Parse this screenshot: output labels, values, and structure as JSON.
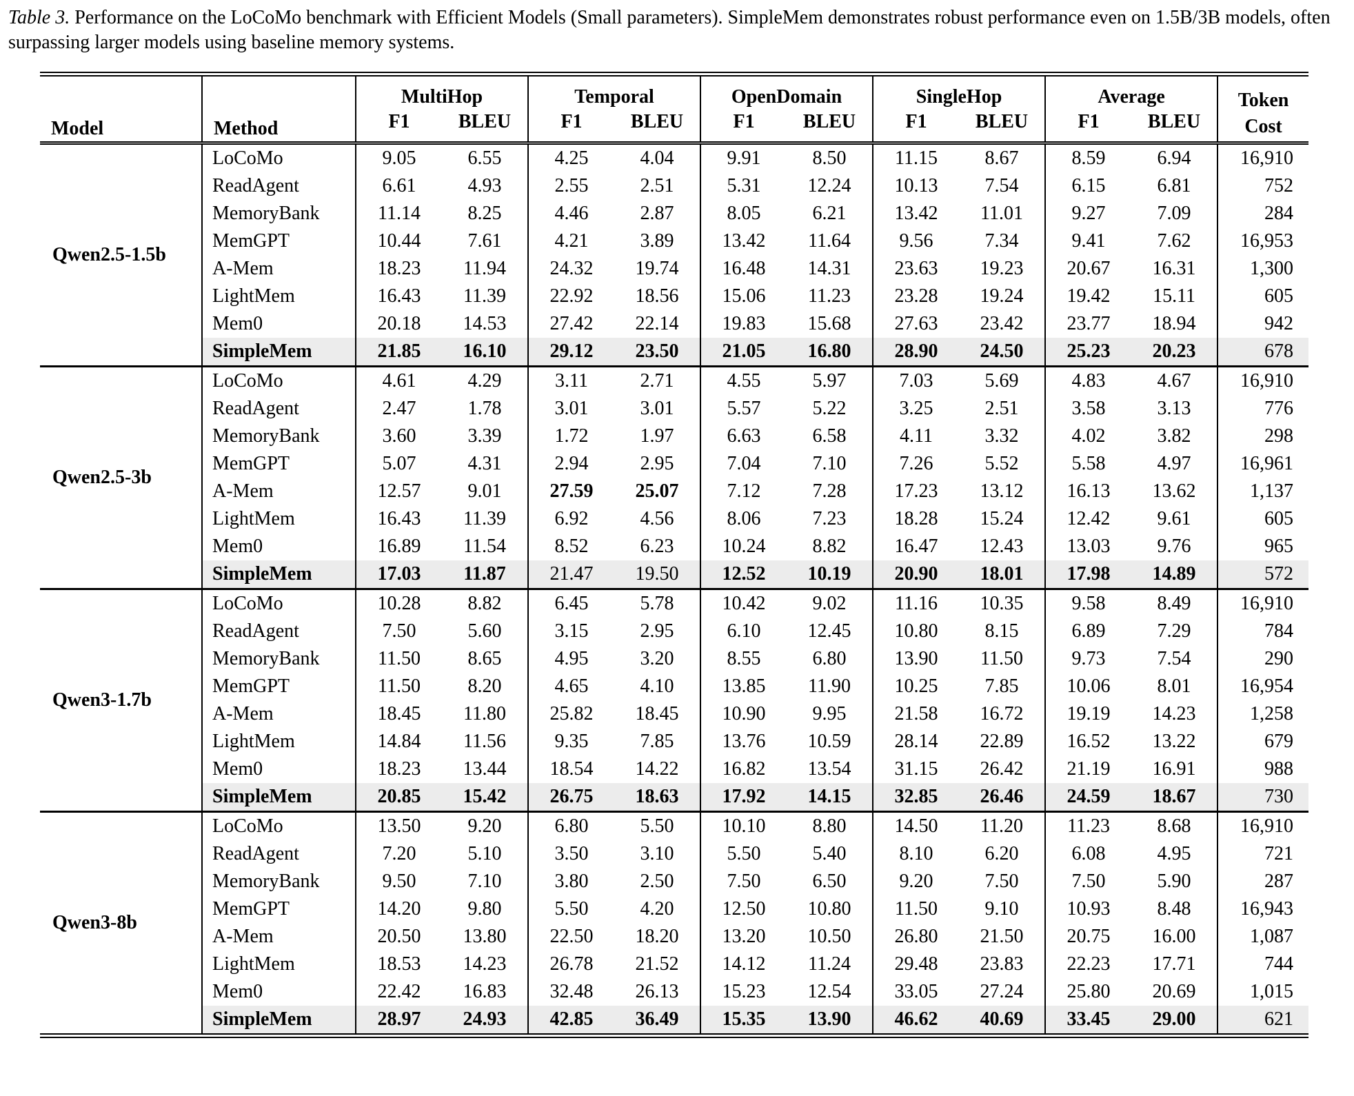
{
  "caption": {
    "label": "Table 3.",
    "text": "Performance on the LoCoMo benchmark with Efficient Models (Small parameters). SimpleMem demonstrates robust performance even on 1.5B/3B models, often surpassing larger models using baseline memory systems."
  },
  "colors": {
    "highlight_row": "#ececec",
    "text": "#000000",
    "rule": "#000000"
  },
  "table": {
    "headers": {
      "model": "Model",
      "method": "Method",
      "groups": [
        "MultiHop",
        "Temporal",
        "OpenDomain",
        "SingleHop",
        "Average"
      ],
      "sub_f1": "F1",
      "sub_bleu": "BLEU",
      "token_line1": "Token",
      "token_line2": "Cost"
    },
    "groups": [
      {
        "model": "Qwen2.5-1.5b",
        "rows": [
          {
            "method": "LoCoMo",
            "values": [
              "9.05",
              "6.55",
              "4.25",
              "4.04",
              "9.91",
              "8.50",
              "11.15",
              "8.67",
              "8.59",
              "6.94"
            ],
            "token": "16,910",
            "bold": [
              0,
              0,
              0,
              0,
              0,
              0,
              0,
              0,
              0,
              0
            ],
            "highlight": false
          },
          {
            "method": "ReadAgent",
            "values": [
              "6.61",
              "4.93",
              "2.55",
              "2.51",
              "5.31",
              "12.24",
              "10.13",
              "7.54",
              "6.15",
              "6.81"
            ],
            "token": "752",
            "bold": [
              0,
              0,
              0,
              0,
              0,
              0,
              0,
              0,
              0,
              0
            ],
            "highlight": false
          },
          {
            "method": "MemoryBank",
            "values": [
              "11.14",
              "8.25",
              "4.46",
              "2.87",
              "8.05",
              "6.21",
              "13.42",
              "11.01",
              "9.27",
              "7.09"
            ],
            "token": "284",
            "bold": [
              0,
              0,
              0,
              0,
              0,
              0,
              0,
              0,
              0,
              0
            ],
            "highlight": false
          },
          {
            "method": "MemGPT",
            "values": [
              "10.44",
              "7.61",
              "4.21",
              "3.89",
              "13.42",
              "11.64",
              "9.56",
              "7.34",
              "9.41",
              "7.62"
            ],
            "token": "16,953",
            "bold": [
              0,
              0,
              0,
              0,
              0,
              0,
              0,
              0,
              0,
              0
            ],
            "highlight": false
          },
          {
            "method": "A-Mem",
            "values": [
              "18.23",
              "11.94",
              "24.32",
              "19.74",
              "16.48",
              "14.31",
              "23.63",
              "19.23",
              "20.67",
              "16.31"
            ],
            "token": "1,300",
            "bold": [
              0,
              0,
              0,
              0,
              0,
              0,
              0,
              0,
              0,
              0
            ],
            "highlight": false
          },
          {
            "method": "LightMem",
            "values": [
              "16.43",
              "11.39",
              "22.92",
              "18.56",
              "15.06",
              "11.23",
              "23.28",
              "19.24",
              "19.42",
              "15.11"
            ],
            "token": "605",
            "bold": [
              0,
              0,
              0,
              0,
              0,
              0,
              0,
              0,
              0,
              0
            ],
            "highlight": false
          },
          {
            "method": "Mem0",
            "values": [
              "20.18",
              "14.53",
              "27.42",
              "22.14",
              "19.83",
              "15.68",
              "27.63",
              "23.42",
              "23.77",
              "18.94"
            ],
            "token": "942",
            "bold": [
              0,
              0,
              0,
              0,
              0,
              0,
              0,
              0,
              0,
              0
            ],
            "highlight": false
          },
          {
            "method": "SimpleMem",
            "values": [
              "21.85",
              "16.10",
              "29.12",
              "23.50",
              "21.05",
              "16.80",
              "28.90",
              "24.50",
              "25.23",
              "20.23"
            ],
            "token": "678",
            "bold": [
              1,
              1,
              1,
              1,
              1,
              1,
              1,
              1,
              1,
              1
            ],
            "highlight": true
          }
        ]
      },
      {
        "model": "Qwen2.5-3b",
        "rows": [
          {
            "method": "LoCoMo",
            "values": [
              "4.61",
              "4.29",
              "3.11",
              "2.71",
              "4.55",
              "5.97",
              "7.03",
              "5.69",
              "4.83",
              "4.67"
            ],
            "token": "16,910",
            "bold": [
              0,
              0,
              0,
              0,
              0,
              0,
              0,
              0,
              0,
              0
            ],
            "highlight": false
          },
          {
            "method": "ReadAgent",
            "values": [
              "2.47",
              "1.78",
              "3.01",
              "3.01",
              "5.57",
              "5.22",
              "3.25",
              "2.51",
              "3.58",
              "3.13"
            ],
            "token": "776",
            "bold": [
              0,
              0,
              0,
              0,
              0,
              0,
              0,
              0,
              0,
              0
            ],
            "highlight": false
          },
          {
            "method": "MemoryBank",
            "values": [
              "3.60",
              "3.39",
              "1.72",
              "1.97",
              "6.63",
              "6.58",
              "4.11",
              "3.32",
              "4.02",
              "3.82"
            ],
            "token": "298",
            "bold": [
              0,
              0,
              0,
              0,
              0,
              0,
              0,
              0,
              0,
              0
            ],
            "highlight": false
          },
          {
            "method": "MemGPT",
            "values": [
              "5.07",
              "4.31",
              "2.94",
              "2.95",
              "7.04",
              "7.10",
              "7.26",
              "5.52",
              "5.58",
              "4.97"
            ],
            "token": "16,961",
            "bold": [
              0,
              0,
              0,
              0,
              0,
              0,
              0,
              0,
              0,
              0
            ],
            "highlight": false
          },
          {
            "method": "A-Mem",
            "values": [
              "12.57",
              "9.01",
              "27.59",
              "25.07",
              "7.12",
              "7.28",
              "17.23",
              "13.12",
              "16.13",
              "13.62"
            ],
            "token": "1,137",
            "bold": [
              0,
              0,
              1,
              1,
              0,
              0,
              0,
              0,
              0,
              0
            ],
            "highlight": false
          },
          {
            "method": "LightMem",
            "values": [
              "16.43",
              "11.39",
              "6.92",
              "4.56",
              "8.06",
              "7.23",
              "18.28",
              "15.24",
              "12.42",
              "9.61"
            ],
            "token": "605",
            "bold": [
              0,
              0,
              0,
              0,
              0,
              0,
              0,
              0,
              0,
              0
            ],
            "highlight": false
          },
          {
            "method": "Mem0",
            "values": [
              "16.89",
              "11.54",
              "8.52",
              "6.23",
              "10.24",
              "8.82",
              "16.47",
              "12.43",
              "13.03",
              "9.76"
            ],
            "token": "965",
            "bold": [
              0,
              0,
              0,
              0,
              0,
              0,
              0,
              0,
              0,
              0
            ],
            "highlight": false
          },
          {
            "method": "SimpleMem",
            "values": [
              "17.03",
              "11.87",
              "21.47",
              "19.50",
              "12.52",
              "10.19",
              "20.90",
              "18.01",
              "17.98",
              "14.89"
            ],
            "token": "572",
            "bold": [
              1,
              1,
              0,
              0,
              1,
              1,
              1,
              1,
              1,
              1
            ],
            "highlight": true
          }
        ]
      },
      {
        "model": "Qwen3-1.7b",
        "rows": [
          {
            "method": "LoCoMo",
            "values": [
              "10.28",
              "8.82",
              "6.45",
              "5.78",
              "10.42",
              "9.02",
              "11.16",
              "10.35",
              "9.58",
              "8.49"
            ],
            "token": "16,910",
            "bold": [
              0,
              0,
              0,
              0,
              0,
              0,
              0,
              0,
              0,
              0
            ],
            "highlight": false
          },
          {
            "method": "ReadAgent",
            "values": [
              "7.50",
              "5.60",
              "3.15",
              "2.95",
              "6.10",
              "12.45",
              "10.80",
              "8.15",
              "6.89",
              "7.29"
            ],
            "token": "784",
            "bold": [
              0,
              0,
              0,
              0,
              0,
              0,
              0,
              0,
              0,
              0
            ],
            "highlight": false
          },
          {
            "method": "MemoryBank",
            "values": [
              "11.50",
              "8.65",
              "4.95",
              "3.20",
              "8.55",
              "6.80",
              "13.90",
              "11.50",
              "9.73",
              "7.54"
            ],
            "token": "290",
            "bold": [
              0,
              0,
              0,
              0,
              0,
              0,
              0,
              0,
              0,
              0
            ],
            "highlight": false
          },
          {
            "method": "MemGPT",
            "values": [
              "11.50",
              "8.20",
              "4.65",
              "4.10",
              "13.85",
              "11.90",
              "10.25",
              "7.85",
              "10.06",
              "8.01"
            ],
            "token": "16,954",
            "bold": [
              0,
              0,
              0,
              0,
              0,
              0,
              0,
              0,
              0,
              0
            ],
            "highlight": false
          },
          {
            "method": "A-Mem",
            "values": [
              "18.45",
              "11.80",
              "25.82",
              "18.45",
              "10.90",
              "9.95",
              "21.58",
              "16.72",
              "19.19",
              "14.23"
            ],
            "token": "1,258",
            "bold": [
              0,
              0,
              0,
              0,
              0,
              0,
              0,
              0,
              0,
              0
            ],
            "highlight": false
          },
          {
            "method": "LightMem",
            "values": [
              "14.84",
              "11.56",
              "9.35",
              "7.85",
              "13.76",
              "10.59",
              "28.14",
              "22.89",
              "16.52",
              "13.22"
            ],
            "token": "679",
            "bold": [
              0,
              0,
              0,
              0,
              0,
              0,
              0,
              0,
              0,
              0
            ],
            "highlight": false
          },
          {
            "method": "Mem0",
            "values": [
              "18.23",
              "13.44",
              "18.54",
              "14.22",
              "16.82",
              "13.54",
              "31.15",
              "26.42",
              "21.19",
              "16.91"
            ],
            "token": "988",
            "bold": [
              0,
              0,
              0,
              0,
              0,
              0,
              0,
              0,
              0,
              0
            ],
            "highlight": false
          },
          {
            "method": "SimpleMem",
            "values": [
              "20.85",
              "15.42",
              "26.75",
              "18.63",
              "17.92",
              "14.15",
              "32.85",
              "26.46",
              "24.59",
              "18.67"
            ],
            "token": "730",
            "bold": [
              1,
              1,
              1,
              1,
              1,
              1,
              1,
              1,
              1,
              1
            ],
            "highlight": true
          }
        ]
      },
      {
        "model": "Qwen3-8b",
        "rows": [
          {
            "method": "LoCoMo",
            "values": [
              "13.50",
              "9.20",
              "6.80",
              "5.50",
              "10.10",
              "8.80",
              "14.50",
              "11.20",
              "11.23",
              "8.68"
            ],
            "token": "16,910",
            "bold": [
              0,
              0,
              0,
              0,
              0,
              0,
              0,
              0,
              0,
              0
            ],
            "highlight": false
          },
          {
            "method": "ReadAgent",
            "values": [
              "7.20",
              "5.10",
              "3.50",
              "3.10",
              "5.50",
              "5.40",
              "8.10",
              "6.20",
              "6.08",
              "4.95"
            ],
            "token": "721",
            "bold": [
              0,
              0,
              0,
              0,
              0,
              0,
              0,
              0,
              0,
              0
            ],
            "highlight": false
          },
          {
            "method": "MemoryBank",
            "values": [
              "9.50",
              "7.10",
              "3.80",
              "2.50",
              "7.50",
              "6.50",
              "9.20",
              "7.50",
              "7.50",
              "5.90"
            ],
            "token": "287",
            "bold": [
              0,
              0,
              0,
              0,
              0,
              0,
              0,
              0,
              0,
              0
            ],
            "highlight": false
          },
          {
            "method": "MemGPT",
            "values": [
              "14.20",
              "9.80",
              "5.50",
              "4.20",
              "12.50",
              "10.80",
              "11.50",
              "9.10",
              "10.93",
              "8.48"
            ],
            "token": "16,943",
            "bold": [
              0,
              0,
              0,
              0,
              0,
              0,
              0,
              0,
              0,
              0
            ],
            "highlight": false
          },
          {
            "method": "A-Mem",
            "values": [
              "20.50",
              "13.80",
              "22.50",
              "18.20",
              "13.20",
              "10.50",
              "26.80",
              "21.50",
              "20.75",
              "16.00"
            ],
            "token": "1,087",
            "bold": [
              0,
              0,
              0,
              0,
              0,
              0,
              0,
              0,
              0,
              0
            ],
            "highlight": false
          },
          {
            "method": "LightMem",
            "values": [
              "18.53",
              "14.23",
              "26.78",
              "21.52",
              "14.12",
              "11.24",
              "29.48",
              "23.83",
              "22.23",
              "17.71"
            ],
            "token": "744",
            "bold": [
              0,
              0,
              0,
              0,
              0,
              0,
              0,
              0,
              0,
              0
            ],
            "highlight": false
          },
          {
            "method": "Mem0",
            "values": [
              "22.42",
              "16.83",
              "32.48",
              "26.13",
              "15.23",
              "12.54",
              "33.05",
              "27.24",
              "25.80",
              "20.69"
            ],
            "token": "1,015",
            "bold": [
              0,
              0,
              0,
              0,
              0,
              0,
              0,
              0,
              0,
              0
            ],
            "highlight": false
          },
          {
            "method": "SimpleMem",
            "values": [
              "28.97",
              "24.93",
              "42.85",
              "36.49",
              "15.35",
              "13.90",
              "46.62",
              "40.69",
              "33.45",
              "29.00"
            ],
            "token": "621",
            "bold": [
              1,
              1,
              1,
              1,
              1,
              1,
              1,
              1,
              1,
              1
            ],
            "highlight": true
          }
        ]
      }
    ]
  }
}
